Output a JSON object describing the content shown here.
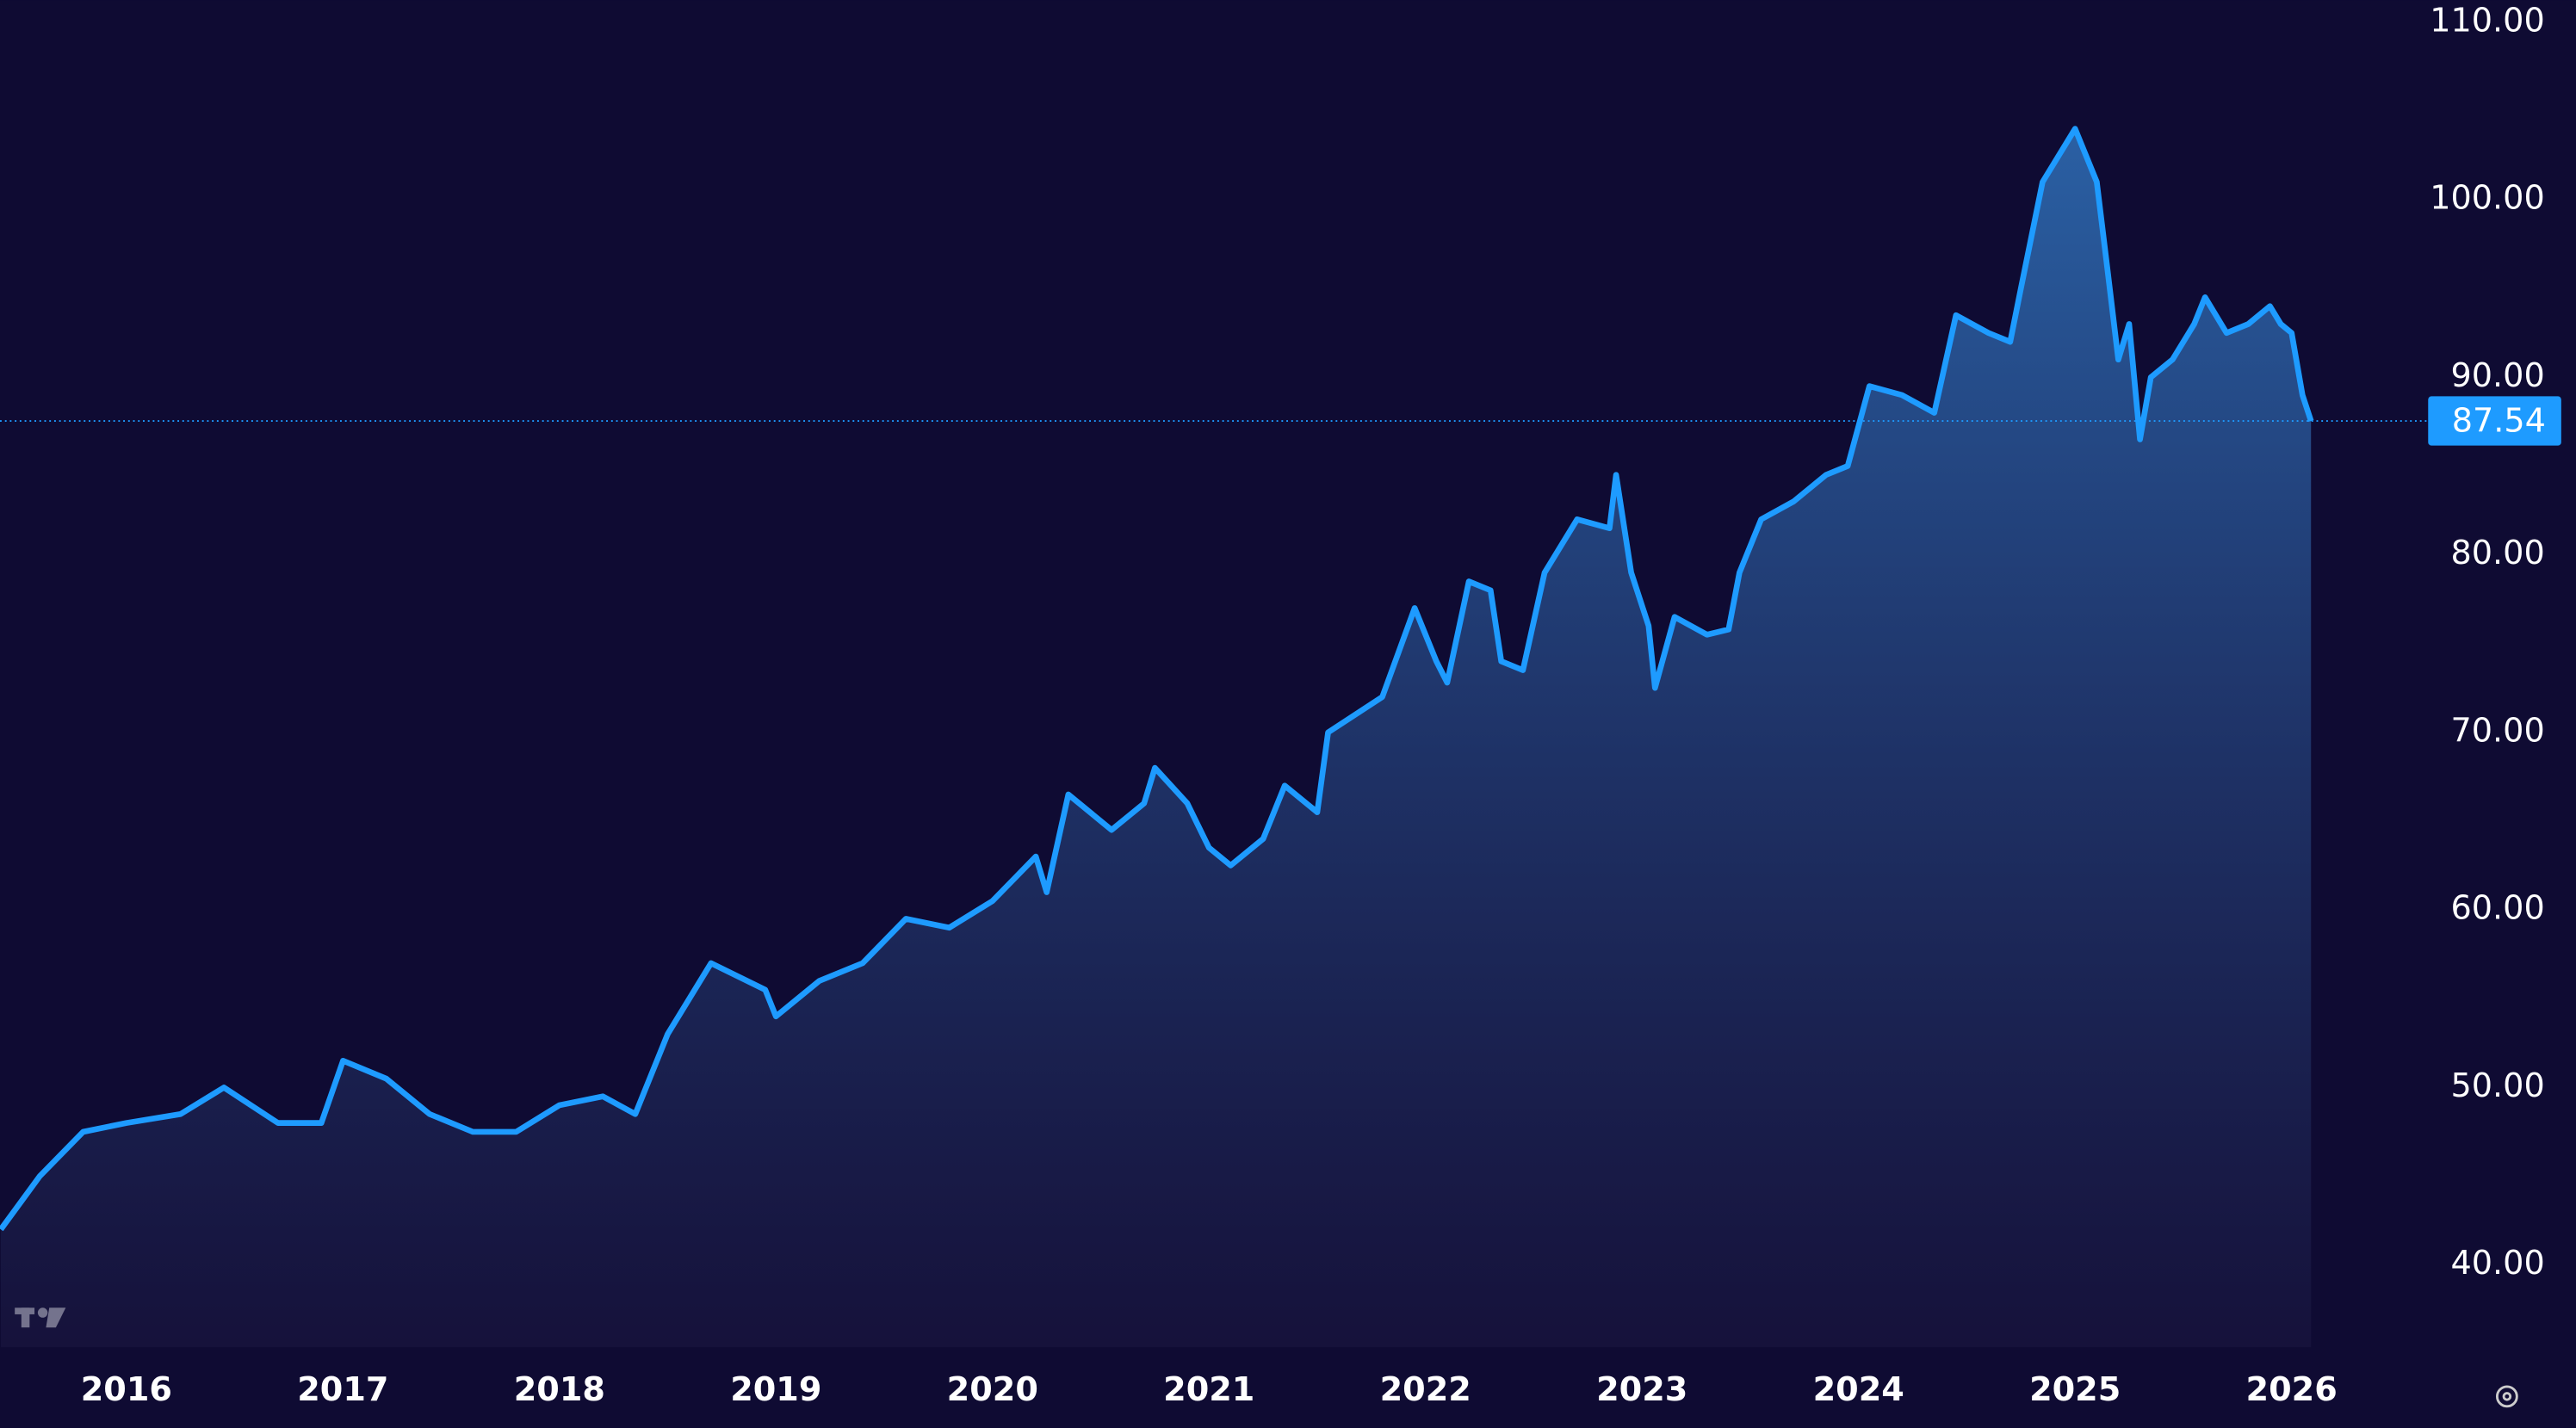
{
  "chart_data": {
    "type": "area",
    "color": "#1e9bff",
    "x": [
      2015.42,
      2015.6,
      2015.8,
      2016.0,
      2016.25,
      2016.45,
      2016.7,
      2016.9,
      2017.0,
      2017.2,
      2017.4,
      2017.6,
      2017.8,
      2018.0,
      2018.2,
      2018.35,
      2018.5,
      2018.7,
      2018.95,
      2019.0,
      2019.2,
      2019.4,
      2019.6,
      2019.8,
      2020.0,
      2020.2,
      2020.25,
      2020.35,
      2020.55,
      2020.7,
      2020.75,
      2020.9,
      2021.0,
      2021.1,
      2021.25,
      2021.35,
      2021.5,
      2021.55,
      2021.8,
      2021.95,
      2022.05,
      2022.1,
      2022.2,
      2022.3,
      2022.35,
      2022.45,
      2022.55,
      2022.7,
      2022.85,
      2022.88,
      2022.95,
      2023.03,
      2023.06,
      2023.15,
      2023.3,
      2023.4,
      2023.45,
      2023.55,
      2023.7,
      2023.85,
      2023.95,
      2024.05,
      2024.2,
      2024.35,
      2024.45,
      2024.6,
      2024.7,
      2024.75,
      2024.85,
      2024.95,
      2025.0,
      2025.1,
      2025.15,
      2025.2,
      2025.25,
      2025.3,
      2025.35,
      2025.45,
      2025.55,
      2025.6,
      2025.7,
      2025.8,
      2025.9,
      2025.95,
      2026.0,
      2026.05,
      2026.09
    ],
    "values": [
      42,
      45,
      47.5,
      48,
      48.5,
      50,
      48,
      48,
      51.5,
      50.5,
      48.5,
      47.5,
      47.5,
      49,
      49.5,
      48.5,
      53,
      57,
      55.5,
      54,
      56,
      57,
      59.5,
      59,
      60.5,
      63,
      61,
      66.5,
      64.5,
      66,
      68,
      66,
      63.5,
      62.5,
      64,
      67,
      65.5,
      70,
      72,
      77,
      74,
      72.8,
      78.5,
      78,
      74,
      73.5,
      79,
      82,
      81.5,
      84.5,
      79,
      76,
      72.5,
      76.5,
      75.5,
      75.8,
      79,
      82,
      83,
      84.5,
      85,
      89.5,
      89,
      88,
      93.5,
      92.5,
      92,
      95,
      101,
      103,
      104,
      101,
      96,
      91,
      93,
      86.5,
      90,
      91,
      93,
      94.5,
      92.5,
      93,
      94,
      93,
      92.5,
      89,
      87.54
    ],
    "xlim": [
      2015.416,
      2026.57
    ],
    "xticks": [
      2016,
      2017,
      2018,
      2019,
      2020,
      2021,
      2022,
      2023,
      2024,
      2025,
      2026
    ],
    "ylim": [
      35.37,
      111.23
    ],
    "yticks": [
      {
        "value": 40,
        "label": "40.00"
      },
      {
        "value": 50,
        "label": "50.00"
      },
      {
        "value": 60,
        "label": "60.00"
      },
      {
        "value": 70,
        "label": "70.00"
      },
      {
        "value": 80,
        "label": "80.00"
      },
      {
        "value": 90,
        "label": "90.00"
      },
      {
        "value": 100,
        "label": "100.00"
      },
      {
        "value": 110,
        "label": "110.00"
      }
    ]
  }
}
